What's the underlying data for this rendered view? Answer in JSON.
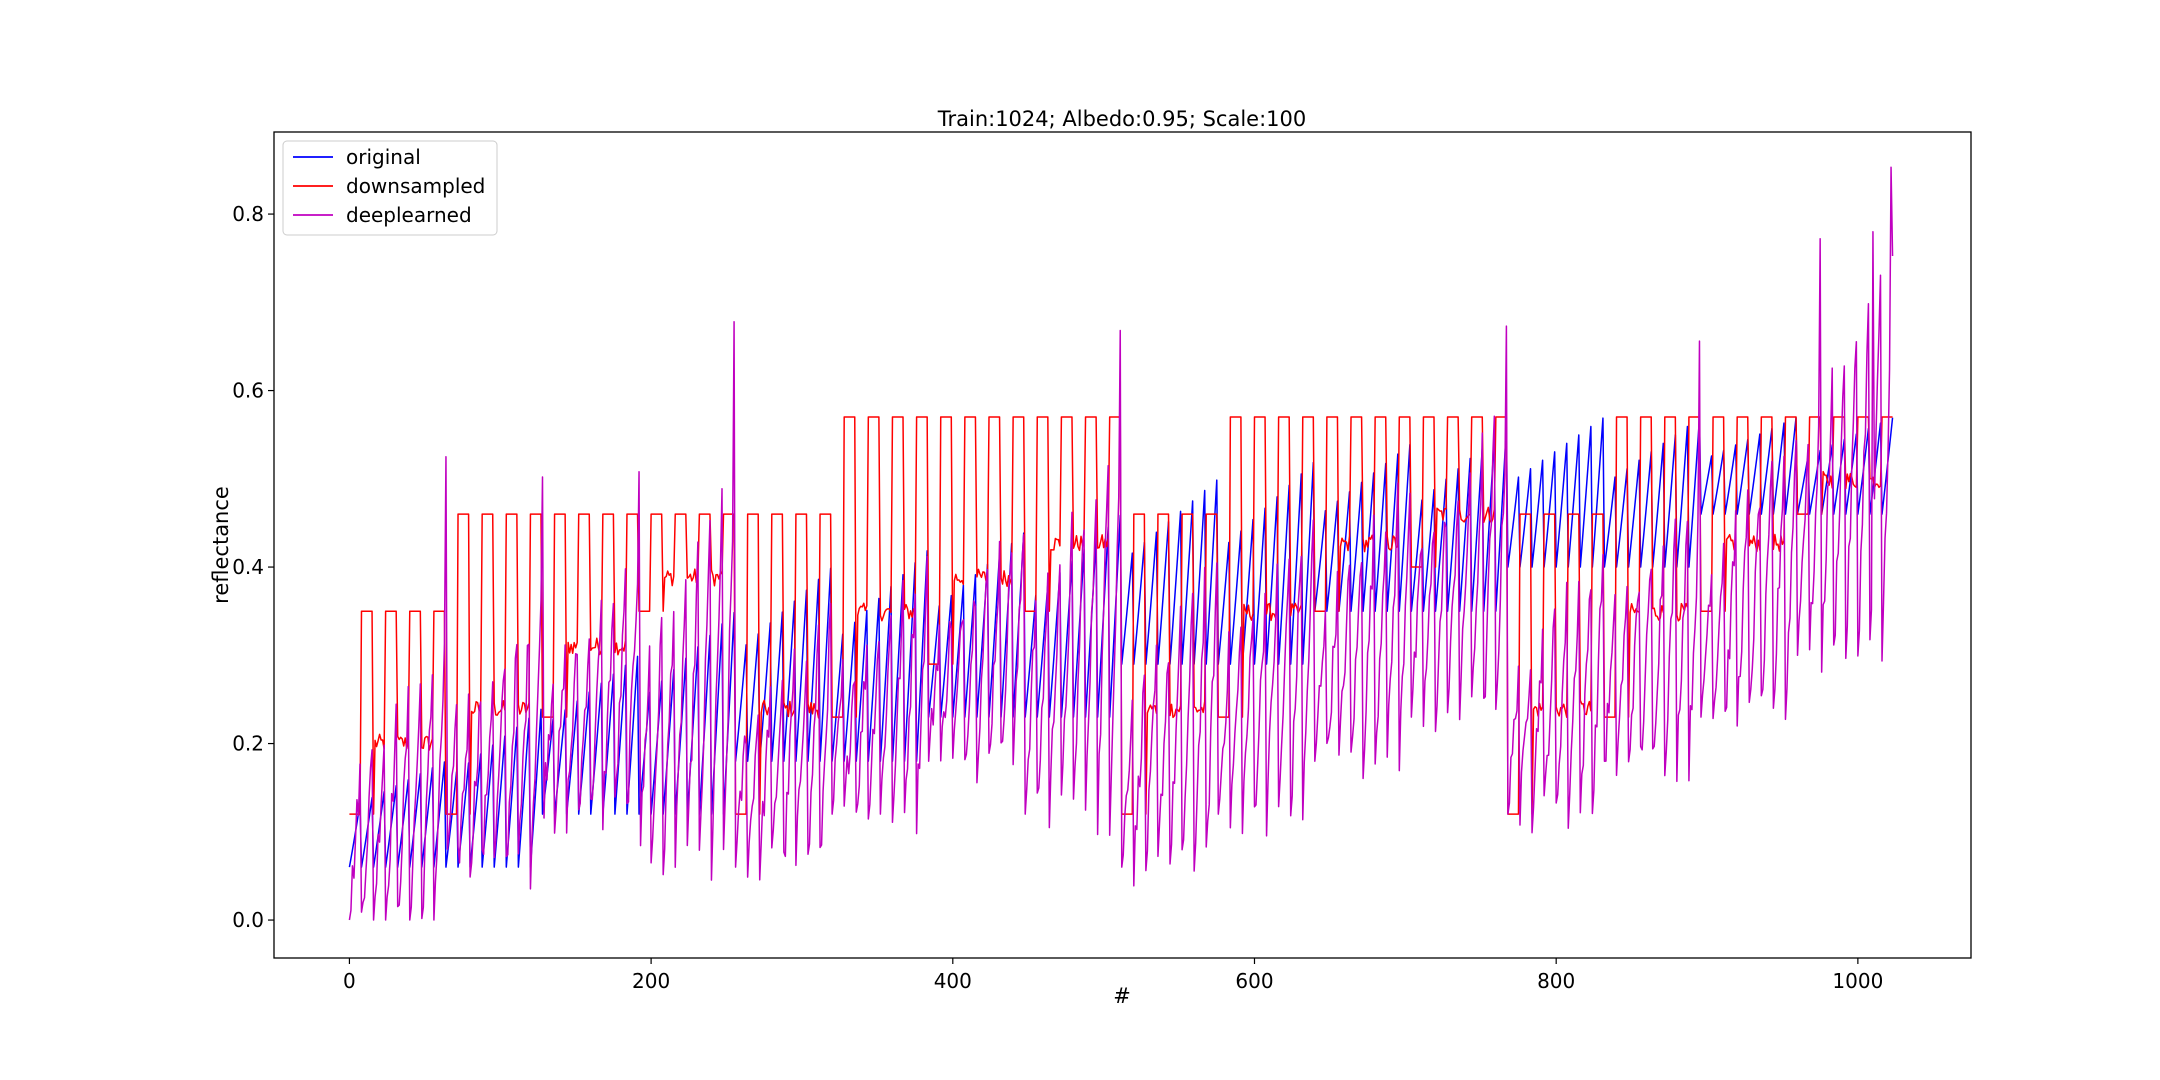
{
  "chart_data": {
    "type": "line",
    "title": "Train:1024; Albedo:0.95; Scale:100",
    "xlabel": "#",
    "ylabel": "reflectance",
    "xlim": [
      -50,
      1075
    ],
    "ylim": [
      -0.043,
      0.893
    ],
    "xticks": [
      0,
      200,
      400,
      600,
      800,
      1000
    ],
    "xtick_labels": [
      "0",
      "200",
      "400",
      "600",
      "800",
      "1000"
    ],
    "yticks": [
      0.0,
      0.2,
      0.4,
      0.6,
      0.8
    ],
    "ytick_labels": [
      "0.0",
      "0.2",
      "0.4",
      "0.6",
      "0.8"
    ],
    "grid": false,
    "legend_position": "top-left",
    "x_range": [
      0,
      1023
    ],
    "series": [
      {
        "name": "original",
        "color": "#0000ff",
        "pattern": "sawtooth with period-8 teeth; plateau levels step up every 64 samples and reset every 256",
        "block_levels": [
          [
            0.06,
            0.18
          ],
          [
            0.06,
            0.24
          ],
          [
            0.12,
            0.3
          ],
          [
            0.12,
            0.35
          ],
          [
            0.18,
            0.4
          ],
          [
            0.18,
            0.42
          ],
          [
            0.23,
            0.44
          ],
          [
            0.23,
            0.46
          ],
          [
            0.29,
            0.5
          ],
          [
            0.29,
            0.52
          ],
          [
            0.35,
            0.54
          ],
          [
            0.35,
            0.56
          ],
          [
            0.4,
            0.57
          ],
          [
            0.4,
            0.57
          ],
          [
            0.46,
            0.57
          ],
          [
            0.46,
            0.57
          ]
        ]
      },
      {
        "name": "downsampled",
        "color": "#ff0000",
        "pattern": "square wave alternating low and high plateaus every 8 samples",
        "block_levels": [
          [
            0.12,
            0.35
          ],
          [
            0.12,
            0.46
          ],
          [
            0.23,
            0.46
          ],
          [
            0.35,
            0.46
          ],
          [
            0.12,
            0.46
          ],
          [
            0.23,
            0.57
          ],
          [
            0.29,
            0.57
          ],
          [
            0.35,
            0.57
          ],
          [
            0.12,
            0.46
          ],
          [
            0.23,
            0.57
          ],
          [
            0.35,
            0.57
          ],
          [
            0.4,
            0.57
          ],
          [
            0.12,
            0.46
          ],
          [
            0.23,
            0.57
          ],
          [
            0.35,
            0.57
          ],
          [
            0.46,
            0.57
          ]
        ]
      },
      {
        "name": "deeplearned",
        "color": "#c000c0",
        "pattern": "noisy sawtooth following the original with spikes at block boundaries",
        "block_levels": [
          [
            0.0,
            0.3
          ],
          [
            0.06,
            0.35
          ],
          [
            0.12,
            0.4
          ],
          [
            0.06,
            0.5
          ],
          [
            0.06,
            0.35
          ],
          [
            0.12,
            0.4
          ],
          [
            0.18,
            0.45
          ],
          [
            0.12,
            0.55
          ],
          [
            0.06,
            0.4
          ],
          [
            0.12,
            0.45
          ],
          [
            0.18,
            0.5
          ],
          [
            0.23,
            0.58
          ],
          [
            0.12,
            0.42
          ],
          [
            0.18,
            0.48
          ],
          [
            0.23,
            0.55
          ],
          [
            0.3,
            0.75
          ]
        ],
        "peaks": [
          {
            "x": 64,
            "y": 0.525
          },
          {
            "x": 128,
            "y": 0.502
          },
          {
            "x": 192,
            "y": 0.508
          },
          {
            "x": 255,
            "y": 0.678
          },
          {
            "x": 511,
            "y": 0.668
          },
          {
            "x": 767,
            "y": 0.673
          },
          {
            "x": 895,
            "y": 0.656
          },
          {
            "x": 975,
            "y": 0.772
          },
          {
            "x": 1010,
            "y": 0.78
          },
          {
            "x": 1022,
            "y": 0.853
          }
        ]
      }
    ]
  }
}
